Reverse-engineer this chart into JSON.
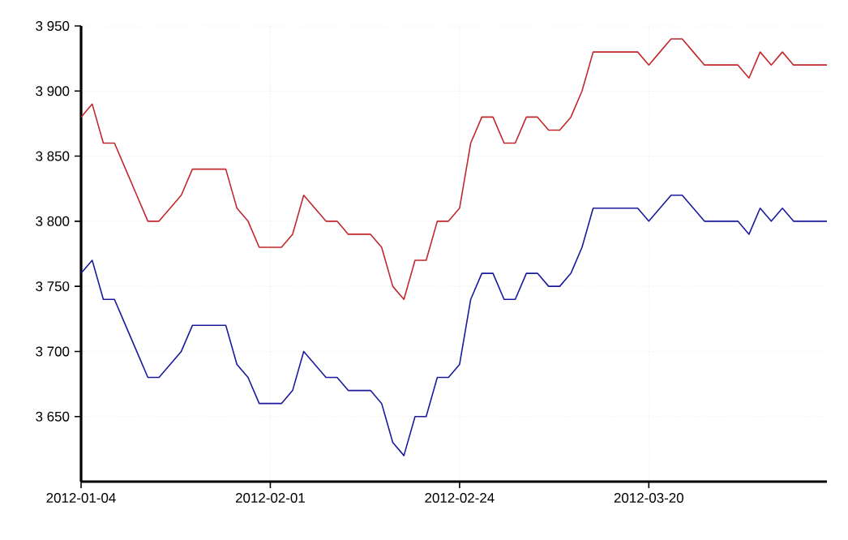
{
  "chart_data": {
    "type": "line",
    "categories": [
      "2012-01-04",
      null,
      null,
      null,
      null,
      null,
      null,
      null,
      null,
      null,
      null,
      null,
      null,
      null,
      null,
      null,
      null,
      "2012-02-01",
      null,
      null,
      null,
      null,
      null,
      null,
      null,
      null,
      null,
      null,
      null,
      null,
      null,
      null,
      null,
      null,
      "2012-02-24",
      null,
      null,
      null,
      null,
      null,
      null,
      null,
      null,
      null,
      null,
      null,
      null,
      null,
      null,
      null,
      null,
      "2012-03-20",
      null,
      null,
      null,
      null,
      null,
      null,
      null,
      null,
      null,
      null,
      null,
      null,
      null,
      null,
      null,
      null
    ],
    "series": [
      {
        "color": "#c0282d",
        "values": [
          3880,
          3890,
          3860,
          3860,
          3840,
          3820,
          3800,
          3800,
          3810,
          3820,
          3840,
          3840,
          3840,
          3840,
          3810,
          3800,
          3780,
          3780,
          3780,
          3790,
          3820,
          3810,
          3800,
          3800,
          3790,
          3790,
          3790,
          3780,
          3750,
          3740,
          3770,
          3770,
          3800,
          3800,
          3810,
          3860,
          3880,
          3880,
          3860,
          3860,
          3880,
          3880,
          3870,
          3870,
          3880,
          3900,
          3930,
          3930,
          3930,
          3930,
          3930,
          3920,
          3930,
          3940,
          3940,
          3930,
          3920,
          3920,
          3920,
          3920,
          3910,
          3930,
          3920,
          3930,
          3920,
          3920,
          3920,
          3920
        ]
      },
      {
        "color": "#1a1a9c",
        "values": [
          3760,
          3770,
          3740,
          3740,
          3720,
          3700,
          3680,
          3680,
          3690,
          3700,
          3720,
          3720,
          3720,
          3720,
          3690,
          3680,
          3660,
          3660,
          3660,
          3670,
          3700,
          3690,
          3680,
          3680,
          3670,
          3670,
          3670,
          3660,
          3630,
          3620,
          3650,
          3650,
          3680,
          3680,
          3690,
          3740,
          3760,
          3760,
          3740,
          3740,
          3760,
          3760,
          3750,
          3750,
          3760,
          3780,
          3810,
          3810,
          3810,
          3810,
          3810,
          3800,
          3810,
          3820,
          3820,
          3810,
          3800,
          3800,
          3800,
          3800,
          3790,
          3810,
          3800,
          3810,
          3800,
          3800,
          3800,
          3800
        ]
      }
    ],
    "ylim": [
      3600,
      3950
    ],
    "yticks": [
      {
        "value": 3650,
        "label": "3 650"
      },
      {
        "value": 3700,
        "label": "3 700"
      },
      {
        "value": 3750,
        "label": "3 750"
      },
      {
        "value": 3800,
        "label": "3 800"
      },
      {
        "value": 3850,
        "label": "3 850"
      },
      {
        "value": 3900,
        "label": "3 900"
      },
      {
        "value": 3950,
        "label": "3 950"
      }
    ],
    "grid": true,
    "legend": false,
    "marker": "none",
    "line_style": "solid"
  }
}
